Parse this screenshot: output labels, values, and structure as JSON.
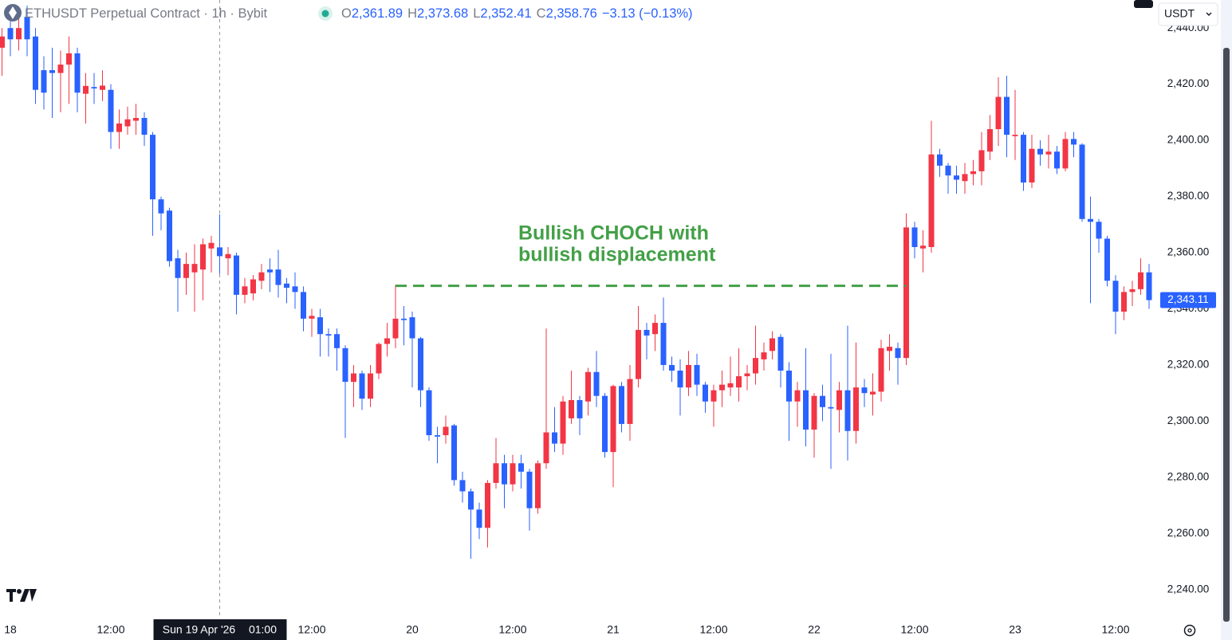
{
  "chart_data": {
    "type": "candlestick",
    "header": {
      "symbol": "ETHUSDT Perpetual Contract · 1h · Bybit",
      "ohlc": [
        {
          "key": "O",
          "text": "2,361.89"
        },
        {
          "key": "H",
          "text": "2,373.68"
        },
        {
          "key": "L",
          "text": "2,352.41"
        },
        {
          "key": "C",
          "text": "2,358.76"
        }
      ],
      "change": "−3.13 (−0.13%)"
    },
    "currency": "USDT",
    "annotation": {
      "lines": [
        "Bullish CHOCH with",
        "bullish displacement"
      ],
      "level": 2348.2,
      "color": "#43a047"
    },
    "crosshair_label": [
      "Sun 19 Apr '26",
      "01:00"
    ],
    "last_price": {
      "value": 2343.11,
      "label": "2,343.11"
    },
    "up_color": "#f23645",
    "down_color": "#2962ff",
    "grid": false,
    "ylim": [
      2230,
      2450
    ],
    "yticks": [
      {
        "value": 2240,
        "label": "2,240.00"
      },
      {
        "value": 2260,
        "label": "2,260.00"
      },
      {
        "value": 2280,
        "label": "2,280.00"
      },
      {
        "value": 2300,
        "label": "2,300.00"
      },
      {
        "value": 2320,
        "label": "2,320.00"
      },
      {
        "value": 2340,
        "label": "2,340.00"
      },
      {
        "value": 2360,
        "label": "2,360.00"
      },
      {
        "value": 2380,
        "label": "2,380.00"
      },
      {
        "value": 2400,
        "label": "2,400.00"
      },
      {
        "value": 2420,
        "label": "2,420.00"
      },
      {
        "value": 2440,
        "label": "2,440.00"
      }
    ],
    "categories": [
      null,
      "18",
      null,
      null,
      null,
      null,
      null,
      null,
      null,
      null,
      null,
      null,
      null,
      "12:00",
      null,
      null,
      null,
      null,
      null,
      null,
      null,
      null,
      null,
      null,
      null,
      null,
      null,
      null,
      null,
      null,
      null,
      null,
      null,
      null,
      null,
      null,
      null,
      "12:00",
      null,
      null,
      null,
      null,
      null,
      null,
      null,
      null,
      null,
      null,
      null,
      "20",
      null,
      null,
      null,
      null,
      null,
      null,
      null,
      null,
      null,
      null,
      null,
      "12:00",
      null,
      null,
      null,
      null,
      null,
      null,
      null,
      null,
      null,
      null,
      null,
      "21",
      null,
      null,
      null,
      null,
      null,
      null,
      null,
      null,
      null,
      null,
      null,
      "12:00",
      null,
      null,
      null,
      null,
      null,
      null,
      null,
      null,
      null,
      null,
      null,
      "22",
      null,
      null,
      null,
      null,
      null,
      null,
      null,
      null,
      null,
      null,
      null,
      "12:00",
      null,
      null,
      null,
      null,
      null,
      null,
      null,
      null,
      null,
      null,
      null,
      "23",
      null,
      null,
      null,
      null,
      null,
      null,
      null,
      null,
      null,
      null,
      null,
      "12:00",
      null,
      null,
      null,
      null
    ],
    "open": [
      2433,
      2440,
      2436,
      2444,
      2437,
      2425,
      2425,
      2424,
      2427,
      2431,
      2416.6,
      2419,
      2418,
      2418,
      2403,
      2405,
      2407,
      2408,
      2402,
      2379,
      2375,
      2358,
      2351,
      2353,
      2354,
      2361.5,
      2361.89,
      2358,
      2359,
      2345,
      2345.5,
      2350,
      2354,
      2354,
      2349,
      2348,
      2346,
      2336.5,
      2337,
      2331,
      2331,
      2326,
      2314,
      2317,
      2308,
      2317,
      2327.5,
      2329.5,
      2336.5,
      2337,
      2329.5,
      2311,
      2295,
      2295,
      2298.5,
      2279,
      2275,
      2268.5,
      2262,
      2278,
      2285,
      2277.5,
      2285,
      2282,
      2269,
      2285,
      2296,
      2292,
      2301,
      2307.5,
      2307,
      2317.5,
      2309,
      2289,
      2312.5,
      2299,
      2315,
      2332.5,
      2331,
      2335,
      2320,
      2318,
      2312,
      2320,
      2313,
      2307,
      2311,
      2312,
      2312,
      2316,
      2317,
      2322,
      2325,
      2330,
      2318,
      2307,
      2311,
      2297,
      2309,
      2305,
      2304,
      2311,
      2296.5,
      2312,
      2309.5,
      2310.5,
      2325,
      2326,
      2322.5,
      2369,
      2361.5,
      2362,
      2395,
      2391,
      2387.5,
      2385.5,
      2388,
      2389,
      2396,
      2404,
      2415.5,
      2401.5,
      2402,
      2385,
      2397,
      2395,
      2396,
      2390,
      2400.5,
      2398.5,
      2372,
      2371,
      2365,
      2350,
      2339,
      2346,
      2347,
      2353
    ],
    "high": [
      2440,
      2445,
      2444,
      2448,
      2440,
      2430,
      2433,
      2432,
      2437,
      2433,
      2424,
      2424,
      2425,
      2420,
      2411,
      2412,
      2413,
      2410,
      2403,
      2380,
      2376,
      2361,
      2360,
      2363,
      2365,
      2366,
      2373.68,
      2362,
      2360,
      2351,
      2352,
      2356,
      2358,
      2361,
      2351,
      2353,
      2348,
      2340,
      2340,
      2333,
      2333,
      2327,
      2320,
      2318,
      2320,
      2328,
      2335,
      2348.5,
      2341,
      2339,
      2330,
      2312,
      2298,
      2302,
      2299,
      2282,
      2276,
      2271,
      2279,
      2294,
      2288,
      2288,
      2288,
      2283,
      2286,
      2333,
      2305,
      2309,
      2318,
      2309,
      2319,
      2325,
      2310,
      2313,
      2314,
      2320,
      2341,
      2335,
      2338,
      2344,
      2323,
      2322,
      2325,
      2324,
      2314,
      2313,
      2318,
      2323,
      2326,
      2320,
      2334,
      2328,
      2332,
      2331,
      2321,
      2314,
      2326,
      2310,
      2313,
      2324,
      2314,
      2334,
      2328,
      2315,
      2317,
      2329,
      2331,
      2328,
      2374,
      2371,
      2368,
      2407,
      2397,
      2392,
      2391,
      2392,
      2393,
      2403,
      2409,
      2422.5,
      2423,
      2418,
      2403,
      2402,
      2400,
      2402,
      2398,
      2403,
      2403,
      2399,
      2380,
      2372,
      2366,
      2352,
      2348,
      2350,
      2358,
      2356
    ],
    "low": [
      2423,
      2430,
      2432,
      2430,
      2413,
      2411,
      2408,
      2410,
      2413,
      2410,
      2406,
      2413,
      2414,
      2397,
      2397,
      2402,
      2402,
      2398,
      2366,
      2368,
      2355,
      2339,
      2345,
      2339,
      2343,
      2353,
      2352.41,
      2352,
      2338,
      2342,
      2343,
      2347,
      2346,
      2344,
      2342,
      2340,
      2332,
      2330,
      2323,
      2323,
      2318,
      2294,
      2305,
      2304,
      2305,
      2315,
      2323,
      2326,
      2327,
      2312,
      2305,
      2293,
      2285,
      2292,
      2277,
      2271,
      2251,
      2258,
      2255,
      2276,
      2269,
      2275,
      2276,
      2261,
      2267,
      2283,
      2289,
      2288,
      2299,
      2295,
      2302,
      2305,
      2287,
      2276.5,
      2296,
      2293,
      2312,
      2322,
      2325,
      2318,
      2314,
      2302,
      2309,
      2309,
      2303,
      2298,
      2305,
      2309,
      2307,
      2311,
      2313,
      2318,
      2322,
      2312,
      2293,
      2298,
      2291,
      2287,
      2300,
      2283,
      2296,
      2286,
      2292,
      2305,
      2302,
      2307,
      2318,
      2313,
      2320,
      2358,
      2353,
      2360,
      2387,
      2381,
      2381,
      2381,
      2384,
      2384,
      2393,
      2398,
      2394,
      2393,
      2382,
      2383,
      2391,
      2390,
      2388,
      2389,
      2394,
      2371,
      2342,
      2360,
      2348,
      2331,
      2336,
      2341,
      2345,
      2340
    ],
    "close": [
      2437,
      2436,
      2440,
      2436,
      2418,
      2417,
      2424,
      2427,
      2431,
      2417,
      2419.4,
      2418.5,
      2419.5,
      2403,
      2406,
      2407.5,
      2408,
      2402,
      2379,
      2374,
      2357,
      2351,
      2356,
      2356,
      2363,
      2363.5,
      2358.76,
      2359.5,
      2345,
      2348,
      2350.5,
      2353,
      2353,
      2348.5,
      2347.5,
      2346,
      2336.5,
      2337.5,
      2331,
      2330.5,
      2326,
      2314,
      2317,
      2308,
      2317,
      2327.5,
      2329.5,
      2336.5,
      2336,
      2329.5,
      2311,
      2295,
      2294.5,
      2298,
      2279,
      2275,
      2268.5,
      2262,
      2278,
      2285,
      2277.5,
      2285,
      2282,
      2269,
      2285,
      2296,
      2292,
      2307,
      2307.5,
      2301,
      2317.5,
      2309,
      2289,
      2312.5,
      2299,
      2315,
      2332.5,
      2330.5,
      2335,
      2320,
      2318,
      2312,
      2320,
      2313,
      2307,
      2311,
      2313,
      2313.5,
      2316,
      2317,
      2322.5,
      2324.5,
      2329.5,
      2318,
      2307,
      2311,
      2297,
      2309,
      2305,
      2304.5,
      2311,
      2296.5,
      2312,
      2310,
      2310.5,
      2326,
      2326.5,
      2322.5,
      2369,
      2362,
      2362.5,
      2395,
      2391,
      2387.5,
      2386,
      2388,
      2389,
      2396.5,
      2404,
      2415.5,
      2402,
      2402,
      2385,
      2397,
      2395,
      2396,
      2390,
      2400.5,
      2398.5,
      2372,
      2371,
      2365,
      2350,
      2339,
      2346,
      2347,
      2353,
      2343.11
    ]
  }
}
